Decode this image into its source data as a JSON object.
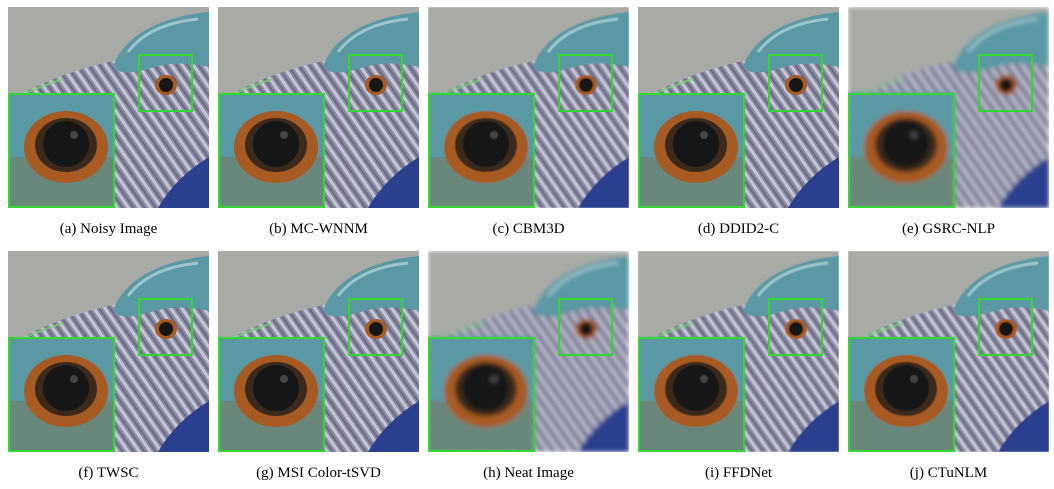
{
  "figure": {
    "panels": [
      {
        "caption": "(a)  Noisy Image",
        "variant": "noisy"
      },
      {
        "caption": "(b)  MC-WNNM",
        "variant": "noisy"
      },
      {
        "caption": "(c)  CBM3D",
        "variant": "smooth"
      },
      {
        "caption": "(d)  DDID2-C",
        "variant": "noisy"
      },
      {
        "caption": "(e)  GSRC-NLP",
        "variant": "blur"
      },
      {
        "caption": "(f)  TWSC",
        "variant": "noisy"
      },
      {
        "caption": "(g)  MSI Color-tSVD",
        "variant": "noisy"
      },
      {
        "caption": "(h)  Neat Image",
        "variant": "blur"
      },
      {
        "caption": "(i)  FFDNet",
        "variant": "smooth"
      },
      {
        "caption": "(j)  CTuNLM",
        "variant": "smooth"
      }
    ],
    "zoom_box_color": "#33d633",
    "background_color": "#a7aaa5",
    "feather_head_color": "#5a98a4",
    "feather_body_color": "#8a8aa3",
    "eye_ring_color": "#a75a23",
    "pupil_color": "#141414",
    "wing_blue_color": "#2b3f8f"
  }
}
